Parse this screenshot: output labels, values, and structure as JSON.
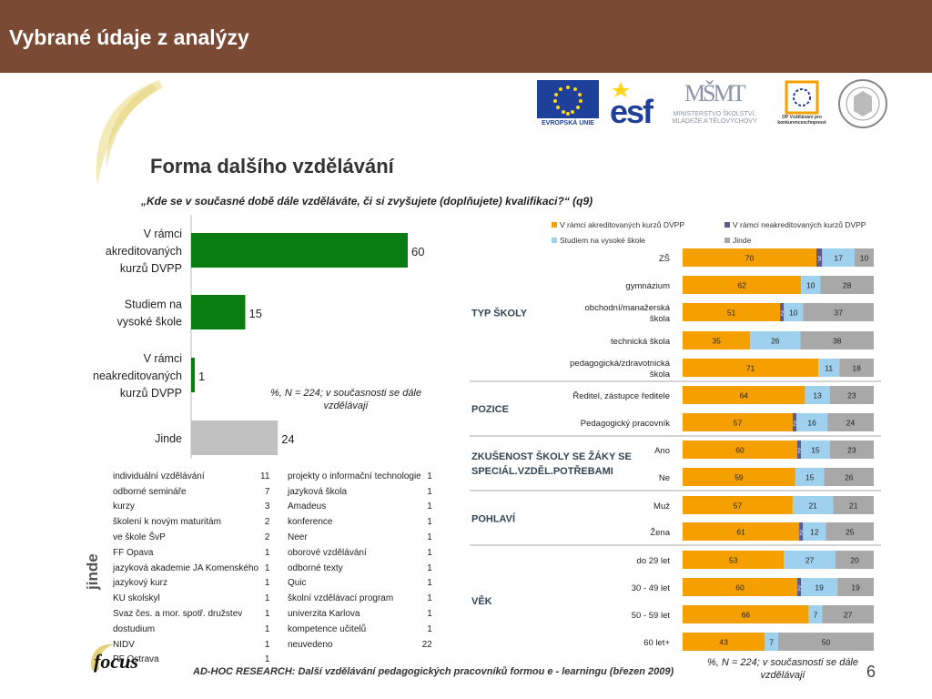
{
  "slide": {
    "title": "Vybrané údaje z analýzy",
    "page_number": "6",
    "footer": "AD-HOC RESEARCH: Další vzdělávání pedagogických pracovníků formou e - learningu (březen 2009)"
  },
  "logos": {
    "eu": "EVROPSKÁ UNIE",
    "esf": "esf",
    "msmt_mark": "MŠMT",
    "msmt_text": "MINISTERSTVO ŠKOLSTVÍ, MLÁDEŽE A TĚLOVÝCHOVY",
    "op_text": "OP Vzdělávání pro konkurenceschopnost",
    "focus": "focus"
  },
  "chart_title": "Forma dalšího vzdělávání",
  "question": "„Kde se v současné době dále vzděláváte, či si zvyšujete (doplňujete) kvalifikaci?“ (q9)",
  "note": "%,  N = 224; v současnosti se dále vzdělávají",
  "colors": {
    "orange": "#f5a000",
    "purple": "#5a5a8c",
    "lightblue": "#9fd0ee",
    "gray": "#a8a8a8",
    "green": "#0a7d12",
    "lightgray": "#c0c0c0"
  },
  "chart_data": [
    {
      "type": "bar",
      "orientation": "horizontal",
      "categories": [
        "V rámci akreditovaných kurzů DVPP",
        "Studiem na vysoké škole",
        "V rámci neakreditovaných kurzů DVPP",
        "Jinde"
      ],
      "category_lines": [
        [
          "V rámci",
          "akreditovaných",
          "kurzů DVPP"
        ],
        [
          "Studiem na",
          "vysoké škole"
        ],
        [
          "V rámci",
          "neakreditovaných",
          "kurzů DVPP"
        ],
        [
          "Jinde"
        ]
      ],
      "values": [
        60,
        15,
        1,
        24
      ],
      "xlim": [
        0,
        100
      ]
    },
    {
      "type": "bar",
      "orientation": "horizontal",
      "stacked": true,
      "legend": [
        "V rámci akreditovaných kurzů DVPP",
        "V rámci neakreditovaných kurzů DVPP",
        "Studiem na vysoké škole",
        "Jinde"
      ],
      "groups": [
        {
          "label_lines": [
            "TYP ŠKOLY"
          ],
          "rows": [
            {
              "label_lines": [
                "ZŠ"
              ],
              "values": [
                70,
                3,
                17,
                10
              ]
            },
            {
              "label_lines": [
                "gymnázium"
              ],
              "values": [
                62,
                0,
                10,
                28
              ]
            },
            {
              "label_lines": [
                "obchodní/manažerská",
                "škola"
              ],
              "values": [
                51,
                2,
                10,
                37
              ]
            },
            {
              "label_lines": [
                "technická škola"
              ],
              "values": [
                35,
                0,
                26,
                38
              ]
            },
            {
              "label_lines": [
                "pedagogická/zdravotnická",
                "škola"
              ],
              "values": [
                71,
                0,
                11,
                18
              ]
            }
          ]
        },
        {
          "label_lines": [
            "POZICE"
          ],
          "rows": [
            {
              "label_lines": [
                "Ředitel, zástupce ředitele"
              ],
              "values": [
                64,
                0,
                13,
                23
              ]
            },
            {
              "label_lines": [
                "Pedagogický pracovník"
              ],
              "values": [
                57,
                2,
                16,
                24
              ]
            }
          ]
        },
        {
          "label_lines": [
            "ZKUŠENOST ŠKOLY SE ŽÁKY SE",
            "SPECIÁL.VZDĚL.POTŘEBAMI"
          ],
          "rows": [
            {
              "label_lines": [
                "Ano"
              ],
              "values": [
                60,
                2,
                15,
                23
              ]
            },
            {
              "label_lines": [
                "Ne"
              ],
              "values": [
                59,
                0,
                15,
                26
              ]
            }
          ]
        },
        {
          "label_lines": [
            "POHLAVÍ"
          ],
          "rows": [
            {
              "label_lines": [
                "Muž"
              ],
              "values": [
                57,
                0,
                21,
                21
              ]
            },
            {
              "label_lines": [
                "Žena"
              ],
              "values": [
                61,
                2,
                12,
                25
              ]
            }
          ]
        },
        {
          "label_lines": [
            "VĚK"
          ],
          "rows": [
            {
              "label_lines": [
                "do 29 let"
              ],
              "values": [
                53,
                0,
                27,
                20
              ]
            },
            {
              "label_lines": [
                "30 - 49 let"
              ],
              "values": [
                60,
                2,
                19,
                19
              ]
            },
            {
              "label_lines": [
                "50 - 59 let"
              ],
              "values": [
                66,
                0,
                7,
                27
              ]
            },
            {
              "label_lines": [
                "60 let+"
              ],
              "values": [
                43,
                0,
                7,
                50
              ]
            }
          ]
        }
      ],
      "xlim": [
        0,
        100
      ]
    },
    {
      "type": "table",
      "title": "jinde",
      "columns": [
        [
          [
            "individuální vzdělávání",
            "11"
          ],
          [
            "odborné semináře",
            "7"
          ],
          [
            "kurzy",
            "3"
          ],
          [
            "školení k novým maturitám",
            "2"
          ],
          [
            "ve škole ŠvP",
            "2"
          ],
          [
            "FF Opava",
            "1"
          ],
          [
            "jazyková akademie JA Komenského",
            "1"
          ],
          [
            "jazykový kurz",
            "1"
          ],
          [
            "KU skolskyl",
            "1"
          ],
          [
            "Svaz čes. a mor. spotř. družstev",
            "1"
          ],
          [
            "dostudium",
            "1"
          ],
          [
            "NIDV",
            "1"
          ],
          [
            "PF Ostrava",
            "1"
          ]
        ],
        [
          [
            "projekty o informační technologie",
            "1"
          ],
          [
            "jazyková škola",
            "1"
          ],
          [
            "Amadeus",
            "1"
          ],
          [
            "konference",
            "1"
          ],
          [
            "Neer",
            "1"
          ],
          [
            "oborové vzdělávání",
            "1"
          ],
          [
            "odborné texty",
            "1"
          ],
          [
            "Quic",
            "1"
          ],
          [
            "školní vzdělávací program",
            "1"
          ],
          [
            "univerzita Karlova",
            "1"
          ],
          [
            "kompetence učitelů",
            "1"
          ],
          [
            "neuvedeno",
            "22"
          ]
        ]
      ]
    }
  ]
}
